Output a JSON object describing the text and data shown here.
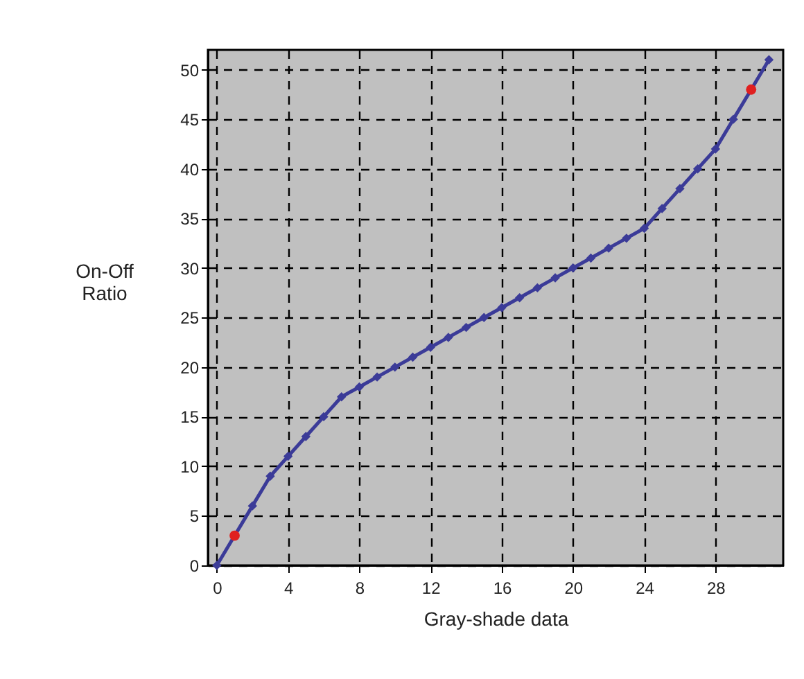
{
  "chart_data": {
    "type": "line",
    "xlabel": "Gray-shade data",
    "ylabel": "On-Off Ratio",
    "xlim": [
      -0.5,
      31.8
    ],
    "ylim": [
      0,
      52
    ],
    "xticks": [
      0,
      4,
      8,
      12,
      16,
      20,
      24,
      28
    ],
    "yticks": [
      0,
      5,
      10,
      15,
      20,
      25,
      30,
      35,
      40,
      45,
      50
    ],
    "grid": true,
    "marker": "diamond",
    "line_style": "solid",
    "series": [
      {
        "color": "#3b3b98",
        "x": [
          0,
          1,
          2,
          3,
          4,
          5,
          6,
          7,
          8,
          9,
          10,
          11,
          12,
          13,
          14,
          15,
          16,
          17,
          18,
          19,
          20,
          21,
          22,
          23,
          24,
          25,
          26,
          27,
          28,
          29,
          30,
          31
        ],
        "values": [
          0,
          3,
          6,
          9,
          11,
          13,
          15,
          17,
          18,
          19,
          20,
          21,
          22,
          23,
          24,
          25,
          26,
          27,
          28,
          29,
          30,
          31,
          32,
          33,
          34,
          36,
          38,
          40,
          42,
          45,
          48,
          51
        ]
      },
      {
        "type": "scatter",
        "color": "#e02020",
        "marker": "circle",
        "x": [
          1,
          30
        ],
        "values": [
          3,
          48
        ]
      }
    ]
  }
}
